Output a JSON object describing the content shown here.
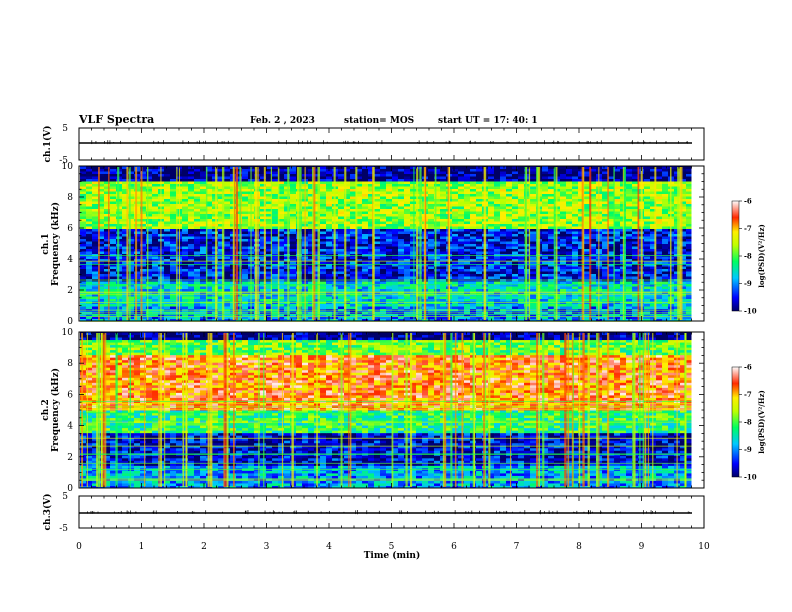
{
  "header": {
    "title": "VLF Spectra",
    "date": "Feb. 2 , 2023",
    "station": "station= MOS",
    "start": "start UT = 17: 40: 1"
  },
  "chart_data": [
    {
      "type": "line",
      "name": "channel-1-waveform",
      "ylabel": "ch.1(V)",
      "ylim": [
        -5,
        5
      ],
      "yticks": [
        "5",
        "-5"
      ],
      "xlim": [
        0,
        10
      ]
    },
    {
      "type": "heatmap",
      "name": "channel-1-spectrogram",
      "ylabel": "ch.1\nFrequency (kHz)",
      "ylim": [
        0,
        10
      ],
      "yticks": [
        "0",
        "2",
        "4",
        "6",
        "8",
        "10"
      ],
      "xlim": [
        0,
        10
      ],
      "data_end_min": 9.8,
      "colorbar": {
        "label": "log(PSD)(V²/Hz)",
        "range": [
          -10,
          -6
        ],
        "ticks": [
          "-6",
          "-7",
          "-8",
          "-9",
          "-10"
        ]
      },
      "bands": [
        {
          "from_khz": 0.0,
          "to_khz": 1.0,
          "level": -9.0
        },
        {
          "from_khz": 1.0,
          "to_khz": 2.5,
          "level": -8.6
        },
        {
          "from_khz": 2.5,
          "to_khz": 6.0,
          "level": -9.5
        },
        {
          "from_khz": 6.0,
          "to_khz": 9.0,
          "level": -7.7
        },
        {
          "from_khz": 9.0,
          "to_khz": 10.0,
          "level": -9.9
        }
      ]
    },
    {
      "type": "heatmap",
      "name": "channel-2-spectrogram",
      "ylabel": "ch.2\nFrequency (kHz)",
      "ylim": [
        0,
        10
      ],
      "yticks": [
        "0",
        "2",
        "4",
        "6",
        "8",
        "10"
      ],
      "xlim": [
        0,
        10
      ],
      "data_end_min": 9.8,
      "colorbar": {
        "label": "log(PSD)(V²/Hz)",
        "range": [
          -10,
          -6
        ],
        "ticks": [
          "-6",
          "-7",
          "-8",
          "-9",
          "-10"
        ]
      },
      "bands": [
        {
          "from_khz": 0.0,
          "to_khz": 1.5,
          "level": -8.9
        },
        {
          "from_khz": 1.5,
          "to_khz": 3.5,
          "level": -9.6
        },
        {
          "from_khz": 3.5,
          "to_khz": 5.0,
          "level": -8.2
        },
        {
          "from_khz": 5.0,
          "to_khz": 8.5,
          "level": -6.7
        },
        {
          "from_khz": 8.5,
          "to_khz": 9.5,
          "level": -7.9
        },
        {
          "from_khz": 9.5,
          "to_khz": 10.0,
          "level": -9.9
        }
      ]
    },
    {
      "type": "line",
      "name": "channel-3-waveform",
      "ylabel": "ch.3(V)",
      "ylim": [
        -5,
        5
      ],
      "yticks": [
        "5",
        "-5"
      ],
      "xlim": [
        0,
        10
      ],
      "xlabel": "Time (min)",
      "xticks": [
        "0",
        "1",
        "2",
        "3",
        "4",
        "5",
        "6",
        "7",
        "8",
        "9",
        "10"
      ]
    }
  ]
}
